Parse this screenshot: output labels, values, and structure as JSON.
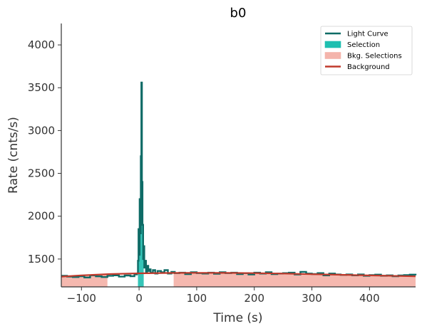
{
  "chart_data": {
    "type": "line",
    "title": "b0",
    "xlabel": "Time (s)",
    "ylabel": "Rate (cnts/s)",
    "xlim": [
      -135,
      480
    ],
    "ylim": [
      1175,
      4250
    ],
    "xticks": [
      -100,
      0,
      100,
      200,
      300,
      400
    ],
    "yticks": [
      1500,
      2000,
      2500,
      3000,
      3500,
      4000
    ],
    "legend_position": "top-right",
    "grid": false,
    "colors": {
      "light_curve": "#0e6b66",
      "selection": "#1fbfb0",
      "bkg_selection": "#f4b4ab",
      "background": "#c0392b"
    },
    "legend": [
      {
        "label": "Light Curve",
        "kind": "line",
        "color_key": "light_curve"
      },
      {
        "label": "Selection",
        "kind": "patch",
        "color_key": "selection"
      },
      {
        "label": "Bkg. Selections",
        "kind": "patch",
        "color_key": "bkg_selection"
      },
      {
        "label": "Background",
        "kind": "line",
        "color_key": "background"
      }
    ],
    "selection": {
      "x": [
        -2,
        8
      ]
    },
    "bkg_selections": [
      {
        "x": [
          -135,
          -55
        ]
      },
      {
        "x": [
          60,
          480
        ]
      }
    ],
    "background_fit": {
      "x": [
        -135,
        -100,
        -50,
        0,
        50,
        100,
        150,
        200,
        250,
        300,
        350,
        400,
        450,
        480
      ],
      "y": [
        1295,
        1310,
        1325,
        1333,
        1337,
        1339,
        1338,
        1335,
        1330,
        1323,
        1316,
        1309,
        1302,
        1298
      ]
    },
    "series": [
      {
        "name": "Light Curve",
        "x": [
          -135,
          -125,
          -115,
          -105,
          -95,
          -85,
          -75,
          -65,
          -55,
          -45,
          -35,
          -25,
          -15,
          -8,
          -4,
          -2,
          -1,
          0,
          1,
          2,
          3,
          4,
          5,
          6,
          7,
          8,
          9,
          10,
          12,
          14,
          16,
          18,
          20,
          24,
          28,
          32,
          38,
          44,
          50,
          56,
          62,
          70,
          80,
          90,
          100,
          110,
          120,
          130,
          140,
          150,
          160,
          170,
          180,
          190,
          200,
          210,
          220,
          230,
          240,
          250,
          260,
          270,
          280,
          290,
          300,
          310,
          320,
          330,
          340,
          350,
          360,
          370,
          380,
          390,
          400,
          410,
          420,
          430,
          440,
          450,
          460,
          470,
          480
        ],
        "y": [
          1305,
          1295,
          1290,
          1300,
          1285,
          1310,
          1298,
          1290,
          1305,
          1310,
          1295,
          1308,
          1300,
          1320,
          1330,
          1480,
          1850,
          1550,
          2200,
          1800,
          2700,
          3560,
          2400,
          1900,
          1500,
          1650,
          1400,
          1480,
          1350,
          1420,
          1360,
          1380,
          1340,
          1370,
          1330,
          1360,
          1345,
          1370,
          1330,
          1350,
          1335,
          1340,
          1325,
          1345,
          1335,
          1330,
          1340,
          1328,
          1345,
          1335,
          1340,
          1325,
          1335,
          1320,
          1340,
          1330,
          1345,
          1325,
          1330,
          1335,
          1340,
          1320,
          1350,
          1330,
          1325,
          1335,
          1310,
          1330,
          1320,
          1315,
          1320,
          1310,
          1320,
          1305,
          1312,
          1318,
          1305,
          1310,
          1300,
          1308,
          1312,
          1318,
          1310
        ]
      }
    ]
  }
}
